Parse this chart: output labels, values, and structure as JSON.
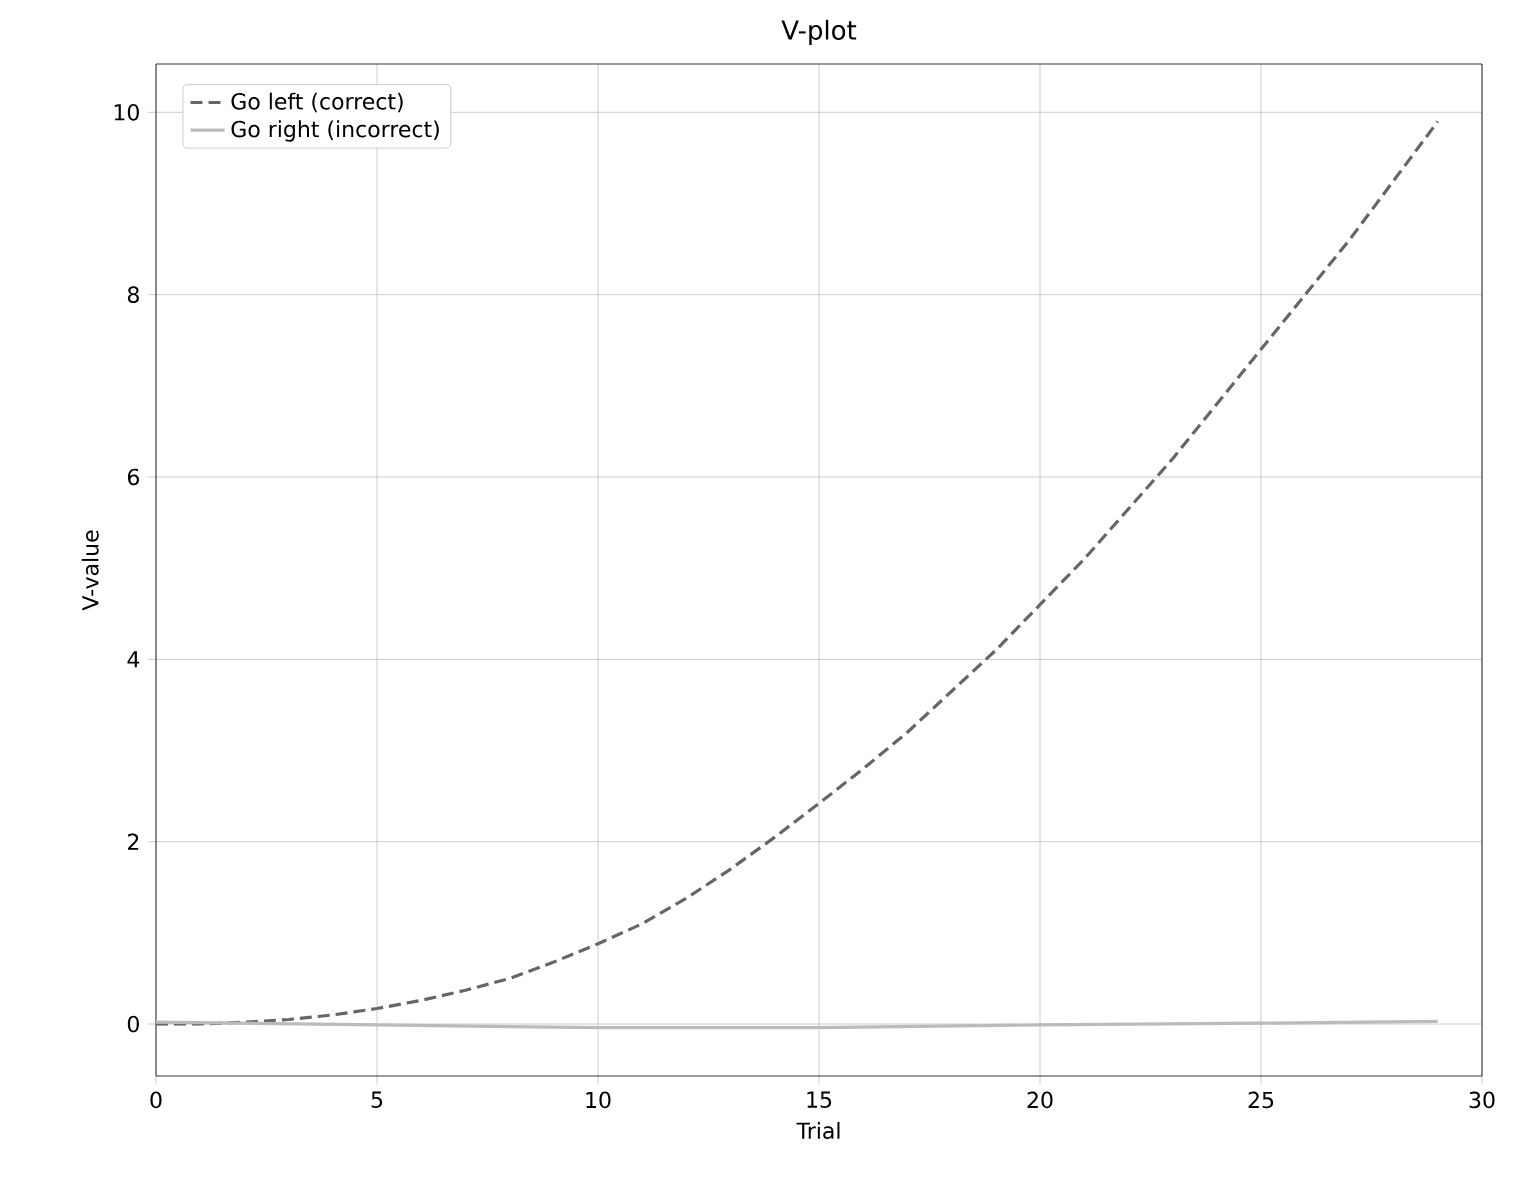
{
  "chart_data": {
    "type": "line",
    "title": "V-plot",
    "xlabel": "Trial",
    "ylabel": "V-value",
    "xlim": [
      0,
      30
    ],
    "xticks": [
      0,
      5,
      10,
      15,
      20,
      25,
      30
    ],
    "ylim": [
      -0.57,
      10.53
    ],
    "yticks": [
      0,
      2,
      4,
      6,
      8,
      10
    ],
    "grid": true,
    "legend": "top left",
    "series": [
      {
        "name": "Go left (correct)",
        "color": "#666666",
        "line_style": "dashed",
        "x": [
          0,
          1,
          2,
          3,
          4,
          5,
          6,
          7,
          8,
          9,
          10,
          11,
          12,
          13,
          14,
          15,
          16,
          17,
          18,
          19,
          20,
          21,
          22,
          23,
          24,
          25,
          26,
          27,
          28,
          29
        ],
        "values": [
          0,
          0,
          0.02,
          0.05,
          0.1,
          0.17,
          0.26,
          0.37,
          0.5,
          0.68,
          0.88,
          1.1,
          1.38,
          1.7,
          2.05,
          2.42,
          2.8,
          3.2,
          3.65,
          4.1,
          4.6,
          5.1,
          5.65,
          6.2,
          6.8,
          7.4,
          8.0,
          8.6,
          9.25,
          9.9
        ]
      },
      {
        "name": "Go right (incorrect)",
        "color": "#bbbbbb",
        "line_style": "solid",
        "x": [
          0,
          5,
          10,
          15,
          20,
          25,
          29
        ],
        "values": [
          0.02,
          -0.01,
          -0.04,
          -0.04,
          -0.01,
          0.01,
          0.03
        ]
      }
    ]
  }
}
